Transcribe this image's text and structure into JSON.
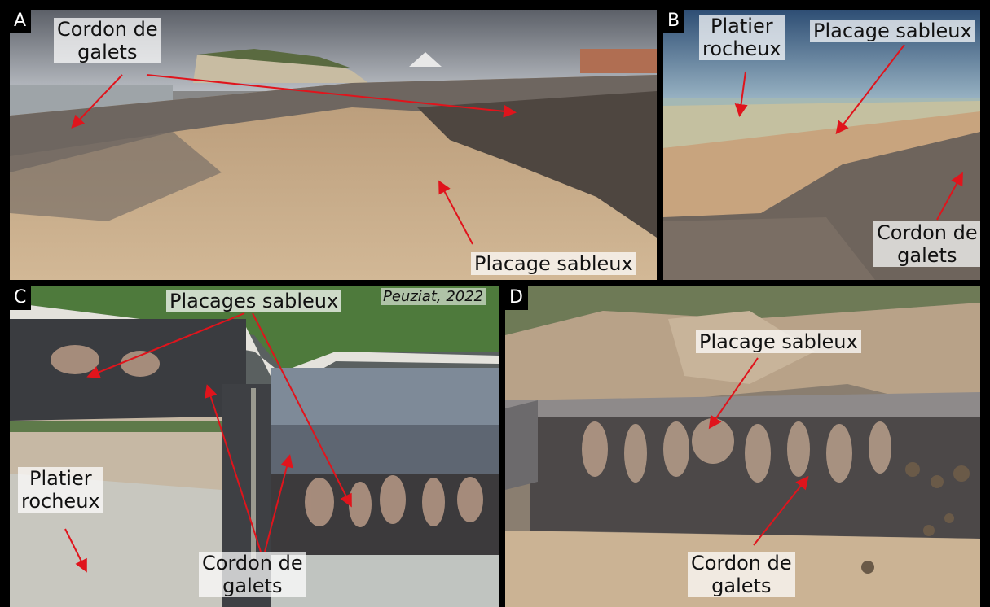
{
  "panels": {
    "a": {
      "letter": "A",
      "labels": {
        "cordon_line1": "Cordon de",
        "cordon_line2": "galets",
        "placage": "Placage sableux"
      }
    },
    "b": {
      "letter": "B",
      "labels": {
        "platier_line1": "Platier",
        "platier_line2": "rocheux",
        "placage": "Placage sableux",
        "cordon_line1": "Cordon de",
        "cordon_line2": "galets"
      }
    },
    "c": {
      "letter": "C",
      "credit": "Peuziat, 2022",
      "labels": {
        "placages": "Placages sableux",
        "platier_line1": "Platier",
        "platier_line2": "rocheux",
        "cordon_line1": "Cordon de",
        "cordon_line2": "galets"
      }
    },
    "d": {
      "letter": "D",
      "labels": {
        "placage": "Placage sableux",
        "cordon_line1": "Cordon de",
        "cordon_line2": "galets"
      }
    }
  },
  "colors": {
    "arrow": "#e0141c",
    "frame": "#000000",
    "label_bg": "#ffffff"
  }
}
